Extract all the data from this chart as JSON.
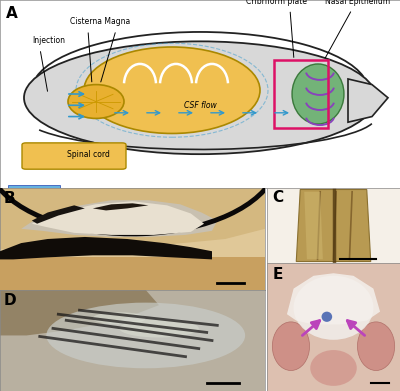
{
  "panel_labels": [
    "A",
    "B",
    "C",
    "D",
    "E"
  ],
  "panel_label_fontsize": 11,
  "panel_label_fontweight": "bold",
  "background_color": "#ffffff",
  "labels": {
    "cisterna_magna": "Cisterna Magna",
    "injection": "Injection",
    "spinal_cord": "Spinal cord",
    "csf_flow": "CSF flow",
    "cribriform_plate": "Cribriform plate",
    "nasal_epithelium": "Nasal Epithelium"
  },
  "label_fontsize": 5.5,
  "scale_bar_color": "#000000",
  "diagram_bg": "#e0e0e0",
  "brain_color": "#f0c050",
  "nasal_green": "#5aaa60",
  "nasal_purple": "#8844bb",
  "csf_arrow_color": "#3399cc",
  "box_color": "#dd1166",
  "spinal_color": "#f0c050",
  "photo_b_bg1": "#e8d0a0",
  "photo_b_bg2": "#c09050",
  "photo_b_dark": "#1a1510",
  "photo_b_white": "#d8d0c0",
  "photo_c_bg": "#c8b878",
  "photo_c_nerve": "#a08850",
  "photo_d_bg": "#b8b8a8",
  "photo_d_dark": "#303030",
  "photo_e_bg": "#e8c8c0",
  "photo_e_pink": "#d89090",
  "photo_e_bright": "#f8f0e8",
  "arrow_purple": "#bb44bb",
  "needle_color": "#55aadd",
  "needle_dark": "#1133aa"
}
